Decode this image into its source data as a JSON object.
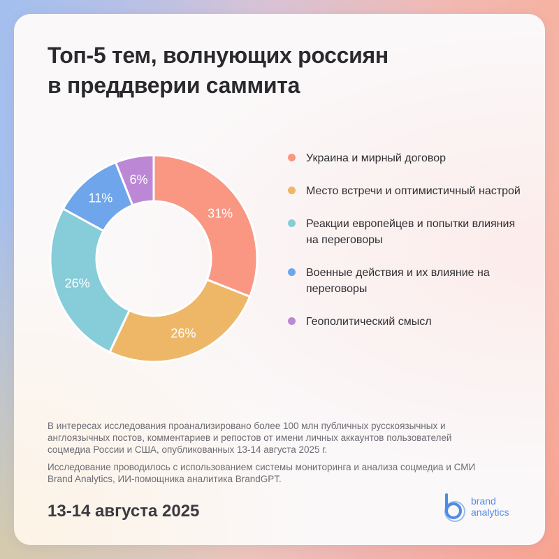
{
  "title": {
    "line1": "Топ-5 тем, волнующих россиян",
    "line2": "в преддверии саммита"
  },
  "chart_data": {
    "type": "pie",
    "donut": true,
    "legend_position": "right",
    "labels": [
      "Украина и мирный договор",
      "Место встречи и оптимистичный настрой",
      "Реакции европейцев и попытки влияния на переговоры",
      "Военные действия и их влияние на переговоры",
      "Геополитический смысл"
    ],
    "values": [
      31,
      26,
      26,
      11,
      6
    ],
    "value_labels": [
      "31%",
      "26%",
      "26%",
      "11%",
      "6%"
    ],
    "colors": [
      "#f99783",
      "#eeb768",
      "#86ccd9",
      "#6ea5eb",
      "#bc88d6"
    ]
  },
  "notes": {
    "p1": "В интересах исследования проанализировано более 100 млн публичных русскоязычных и англоязычных постов, комментариев и репостов от имени личных аккаунтов пользователей соцмедиа России и США, опубликованных 13-14 августа 2025 г.",
    "p2": "Исследование проводилось с использованием системы мониторинга и анализа соцмедиа и СМИ Brand Analytics, ИИ-помощника аналитика BrandGPT."
  },
  "date": "13-14 августа 2025",
  "brand": {
    "line1": "brand",
    "line2": "analytics",
    "color": "#4f8be6",
    "icon": "brand-analytics-logo-icon"
  },
  "background_colors": {
    "left": "#a8c0ec",
    "right": "#f6b2a2",
    "card": "#fbf8f9"
  }
}
